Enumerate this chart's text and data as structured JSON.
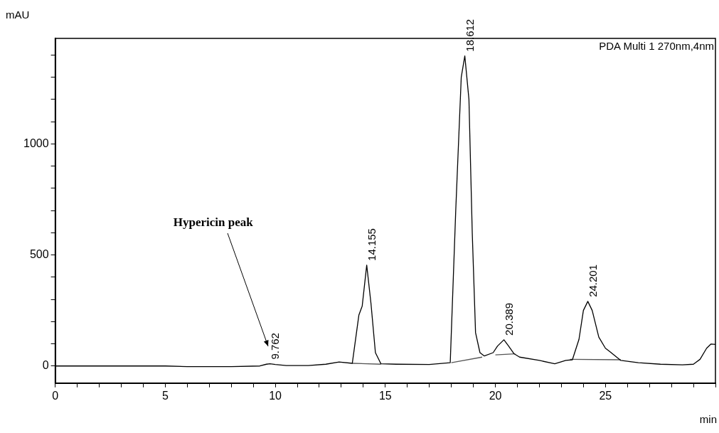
{
  "chart_data": {
    "type": "line",
    "title": "PDA Multi 1 270nm,4nm",
    "xlabel": "min",
    "ylabel": "mAU",
    "xlim": [
      0,
      30
    ],
    "ylim": [
      -77,
      1475
    ],
    "xticks": [
      0,
      {
        "value": 1,
        "label": null
      },
      {
        "value": 2,
        "label": null
      },
      {
        "value": 3,
        "label": null
      },
      {
        "value": 4,
        "label": null
      },
      5,
      {
        "value": 6,
        "label": null
      },
      {
        "value": 7,
        "label": null
      },
      {
        "value": 8,
        "label": null
      },
      {
        "value": 9,
        "label": null
      },
      10,
      {
        "value": 11,
        "label": null
      },
      {
        "value": 12,
        "label": null
      },
      {
        "value": 13,
        "label": null
      },
      {
        "value": 14,
        "label": null
      },
      15,
      {
        "value": 16,
        "label": null
      },
      {
        "value": 17,
        "label": null
      },
      {
        "value": 18,
        "label": null
      },
      {
        "value": 19,
        "label": null
      },
      20,
      {
        "value": 21,
        "label": null
      },
      {
        "value": 22,
        "label": null
      },
      {
        "value": 23,
        "label": null
      },
      {
        "value": 24,
        "label": null
      },
      25,
      {
        "value": 26,
        "label": null
      },
      {
        "value": 27,
        "label": null
      },
      {
        "value": 28,
        "label": null
      },
      {
        "value": 29,
        "label": null
      },
      {
        "value": 30,
        "label": null
      }
    ],
    "yticks": [
      0,
      {
        "value": 100,
        "label": null
      },
      {
        "value": 200,
        "label": null
      },
      {
        "value": 300,
        "label": null
      },
      {
        "value": 400,
        "label": null
      },
      500,
      {
        "value": 600,
        "label": null
      },
      {
        "value": 700,
        "label": null
      },
      {
        "value": 800,
        "label": null
      },
      {
        "value": 900,
        "label": null
      },
      1000,
      {
        "value": 1100,
        "label": null
      },
      {
        "value": 1200,
        "label": null
      },
      {
        "value": 1300,
        "label": null
      },
      {
        "value": 1400,
        "label": null
      }
    ],
    "grid": false,
    "legend": false,
    "marker": "none",
    "line_style": "solid",
    "series": [
      {
        "color": "#000000",
        "x": [
          0,
          5,
          6,
          8,
          9.3,
          9.6,
          9.762,
          10,
          10.5,
          11.5,
          12.3,
          12.9,
          13.5,
          13.8,
          13.95,
          14.155,
          14.35,
          14.55,
          14.8,
          15.5,
          17,
          17.95,
          18.2,
          18.45,
          18.612,
          18.8,
          18.95,
          19.1,
          19.3,
          19.5,
          19.9,
          20.1,
          20.389,
          20.6,
          20.85,
          21.1,
          22,
          22.7,
          23.2,
          23.5,
          23.8,
          24,
          24.201,
          24.4,
          24.7,
          25,
          25.2,
          25.7,
          26.5,
          27.5,
          28.5,
          29,
          29.3,
          29.6,
          29.8,
          30
        ],
        "values": [
          0,
          0,
          -3,
          -3,
          0,
          8,
          10,
          7,
          2,
          2,
          8,
          18,
          12,
          230,
          270,
          454,
          280,
          60,
          10,
          8,
          7,
          15,
          700,
          1300,
          1396,
          1200,
          600,
          150,
          60,
          45,
          60,
          90,
          118,
          90,
          55,
          40,
          25,
          10,
          25,
          28,
          120,
          250,
          291,
          250,
          130,
          80,
          65,
          25,
          15,
          8,
          5,
          8,
          30,
          80,
          99,
          97
        ]
      },
      {
        "color": "#555555",
        "x": [
          13.5,
          14.8,
          16,
          18,
          19.4,
          19.7,
          20,
          20.9,
          22,
          23.4,
          25.7
        ],
        "values": [
          12,
          8,
          null,
          15,
          40,
          null,
          50,
          55,
          null,
          30,
          28
        ]
      }
    ],
    "annotations": [
      {
        "text": "9.762",
        "x": 9.762,
        "y": 10
      },
      {
        "text": "14.155",
        "x": 14.155,
        "y": 454
      },
      {
        "text": "18.612",
        "x": 18.612,
        "y": 1396
      },
      {
        "text": "20.389",
        "x": 20.389,
        "y": 118
      },
      {
        "text": "24.201",
        "x": 24.201,
        "y": 291
      },
      "Hypericin peak"
    ]
  }
}
